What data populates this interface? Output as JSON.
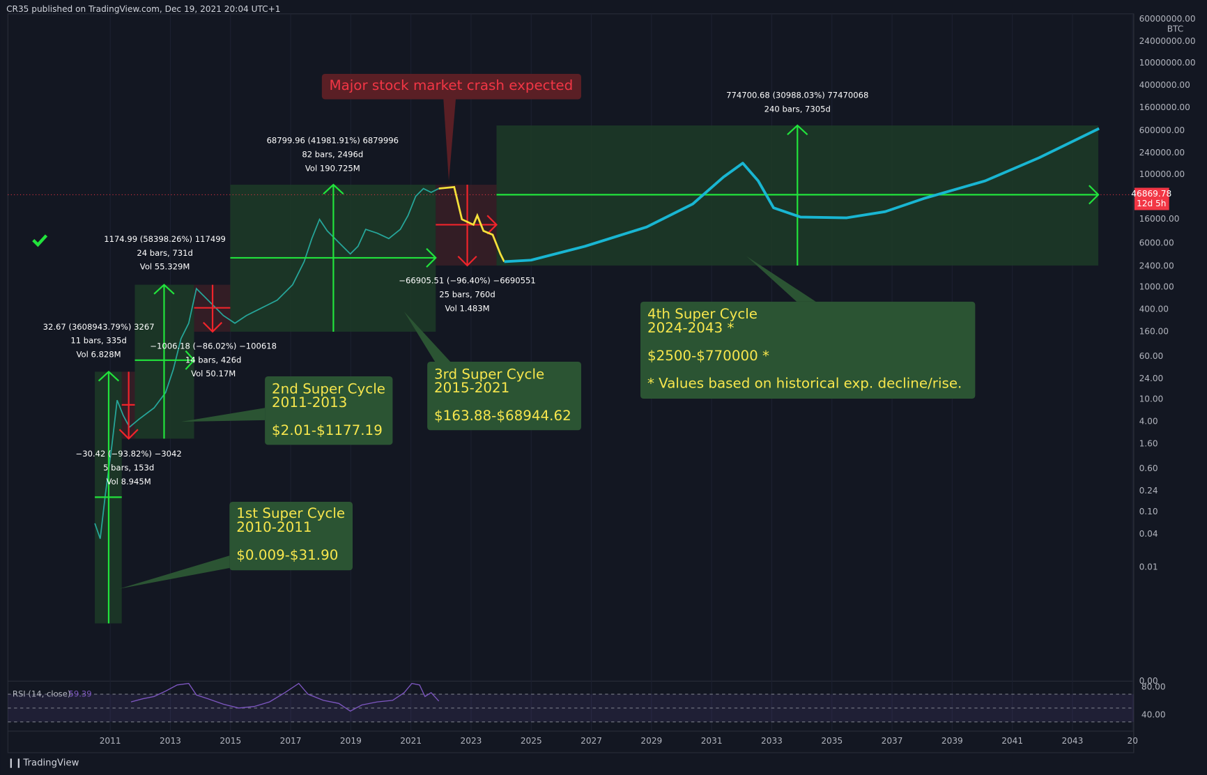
{
  "header": {
    "published": "CR35 published on TradingView.com, Dec 19, 2021 20:04 UTC+1"
  },
  "banner": "Major stock market crash expected",
  "measures": [
    {
      "lines": [
        "68799.96 (41981.91%) 6879996",
        "82 bars, 2496d",
        "Vol 190.725M"
      ]
    },
    {
      "lines": [
        "1174.99 (58398.26%) 117499",
        "24 bars, 731d",
        "Vol 55.329M"
      ]
    },
    {
      "lines": [
        "32.67 (3608943.79%) 3267",
        "11 bars, 335d",
        "Vol 6.828M"
      ]
    },
    {
      "lines": [
        "−1006.18 (−86.02%) −100618",
        "14 bars, 426d",
        "Vol 50.17M"
      ]
    },
    {
      "lines": [
        "−30.42 (−93.82%) −3042",
        "5 bars, 153d",
        "Vol 8.945M"
      ]
    },
    {
      "lines": [
        "−66905.51 (−96.40%) −6690551",
        "25 bars, 760d",
        "Vol 1.483M"
      ]
    },
    {
      "lines": [
        "774700.68 (30988.03%) 77470068",
        "240 bars, 7305d"
      ]
    }
  ],
  "callouts": [
    {
      "lines": [
        "1st Super Cycle",
        "2010-2011",
        "$0.009-$31.90"
      ]
    },
    {
      "lines": [
        "2nd Super Cycle",
        "2011-2013",
        "$2.01-$1177.19"
      ]
    },
    {
      "lines": [
        "3rd Super Cycle",
        "2015-2021",
        "$163.88-$68944.62"
      ]
    },
    {
      "lines": [
        "4th Super Cycle",
        "2024-2043 *",
        "$2500-$770000 *",
        "* Values based on historical exp. decline/rise."
      ]
    }
  ],
  "price_axis": {
    "unit": "BTC",
    "labels": [
      "60000000.00",
      "24000000.00",
      "10000000.00",
      "4000000.00",
      "1600000.00",
      "600000.00",
      "240000.00",
      "100000.00",
      "16000.00",
      "6000.00",
      "2400.00",
      "1000.00",
      "400.00",
      "160.00",
      "60.00",
      "24.00",
      "10.00",
      "4.00",
      "1.60",
      "0.60",
      "0.24",
      "0.10",
      "0.04",
      "0.01",
      "0.00"
    ],
    "last_price": "46869.78",
    "countdown": "12d 5h"
  },
  "rsi": {
    "label": "RSI (14, close)",
    "value": "59.39",
    "labels": [
      "80.00",
      "40.00"
    ]
  },
  "time_axis": {
    "labels": [
      "2011",
      "2013",
      "2015",
      "2017",
      "2019",
      "2021",
      "2023",
      "2025",
      "2027",
      "2029",
      "2031",
      "2033",
      "2035",
      "2037",
      "2039",
      "2041",
      "2043",
      "20"
    ]
  },
  "footer": {
    "brand": "TradingView"
  }
}
